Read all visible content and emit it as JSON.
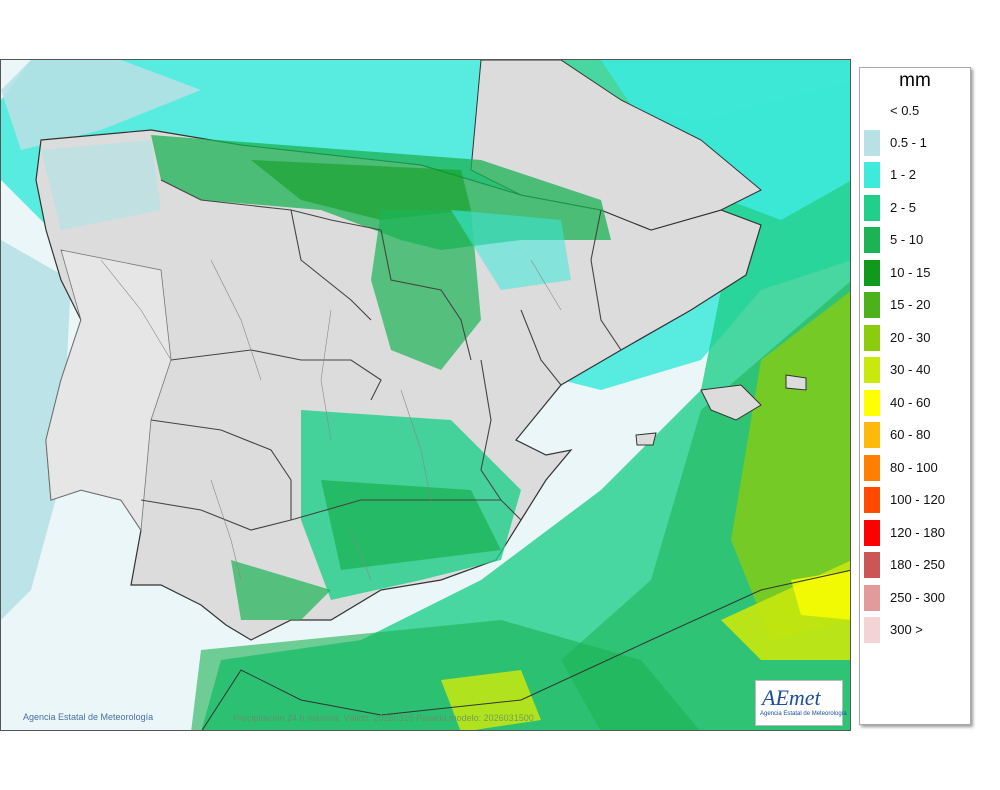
{
  "legend": {
    "unit": "mm",
    "items": [
      {
        "label": "< 0.5",
        "color": "#ffffff"
      },
      {
        "label": "0.5 - 1",
        "color": "#b7e1e4"
      },
      {
        "label": "1 - 2",
        "color": "#3deadb"
      },
      {
        "label": "2 - 5",
        "color": "#1fcf8a"
      },
      {
        "label": "5 - 10",
        "color": "#1bb354"
      },
      {
        "label": "10 - 15",
        "color": "#0f9a1c"
      },
      {
        "label": "15 - 20",
        "color": "#4bb21a"
      },
      {
        "label": "20 - 30",
        "color": "#8dcc0c"
      },
      {
        "label": "30 - 40",
        "color": "#c8e80e"
      },
      {
        "label": "40 - 60",
        "color": "#ffff00"
      },
      {
        "label": "60 - 80",
        "color": "#ffb90c"
      },
      {
        "label": "80 - 100",
        "color": "#ff7f00"
      },
      {
        "label": "100 - 120",
        "color": "#ff4a00"
      },
      {
        "label": "120 - 180",
        "color": "#ff0000"
      },
      {
        "label": "180 - 250",
        "color": "#cc5555"
      },
      {
        "label": "250 - 300",
        "color": "#e39a9a"
      },
      {
        "label": "300 >",
        "color": "#f3d3d3"
      }
    ]
  },
  "footer": {
    "credit": "Agencia Estatal de Meteorología",
    "caption": "Precipitación 24 h máxima. Válido: 20260315 Pasada modelo: 2026031500"
  },
  "logo": {
    "text": "AEmet",
    "subtitle": "Agencia Estatal de Meteorología"
  },
  "colors": {
    "land": "#dcdcdc",
    "sea": "#ffffff",
    "border": "#333333"
  }
}
